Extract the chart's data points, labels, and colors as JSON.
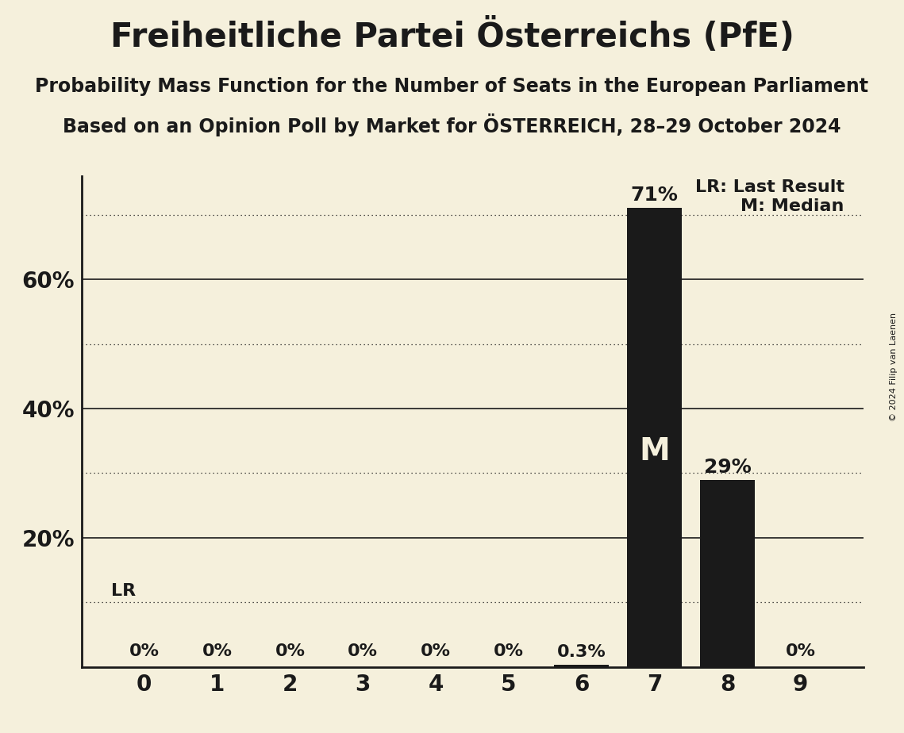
{
  "title": "Freiheitliche Partei Österreichs (PfE)",
  "subtitle1": "Probability Mass Function for the Number of Seats in the European Parliament",
  "subtitle2": "Based on an Opinion Poll by Market for ÖSTERREICH, 28–29 October 2024",
  "copyright": "© 2024 Filip van Laenen",
  "categories": [
    0,
    1,
    2,
    3,
    4,
    5,
    6,
    7,
    8,
    9
  ],
  "values": [
    0.0,
    0.0,
    0.0,
    0.0,
    0.0,
    0.0,
    0.3,
    71.0,
    29.0,
    0.0
  ],
  "bar_color": "#1a1a1a",
  "background_color": "#f5f0dc",
  "label_color": "#1a1a1a",
  "bar_label_color_outside": "#1a1a1a",
  "bar_label_color_inside": "#f5f0dc",
  "median_seat": 7,
  "lr_value": 10.0,
  "ylim": [
    0,
    76
  ],
  "yticks": [
    0,
    10,
    20,
    30,
    40,
    50,
    60,
    70
  ],
  "ylabel_ticks": [
    20,
    40,
    60
  ],
  "dotted_lines": [
    10,
    30,
    50,
    70
  ],
  "solid_lines": [
    20,
    40,
    60
  ],
  "legend_lr": "LR: Last Result",
  "legend_m": "M: Median",
  "title_fontsize": 30,
  "subtitle_fontsize": 17,
  "bar_label_fontsize": 16,
  "axis_tick_fontsize": 20,
  "ytick_fontsize": 20,
  "legend_fontsize": 16,
  "median_fontsize": 28
}
